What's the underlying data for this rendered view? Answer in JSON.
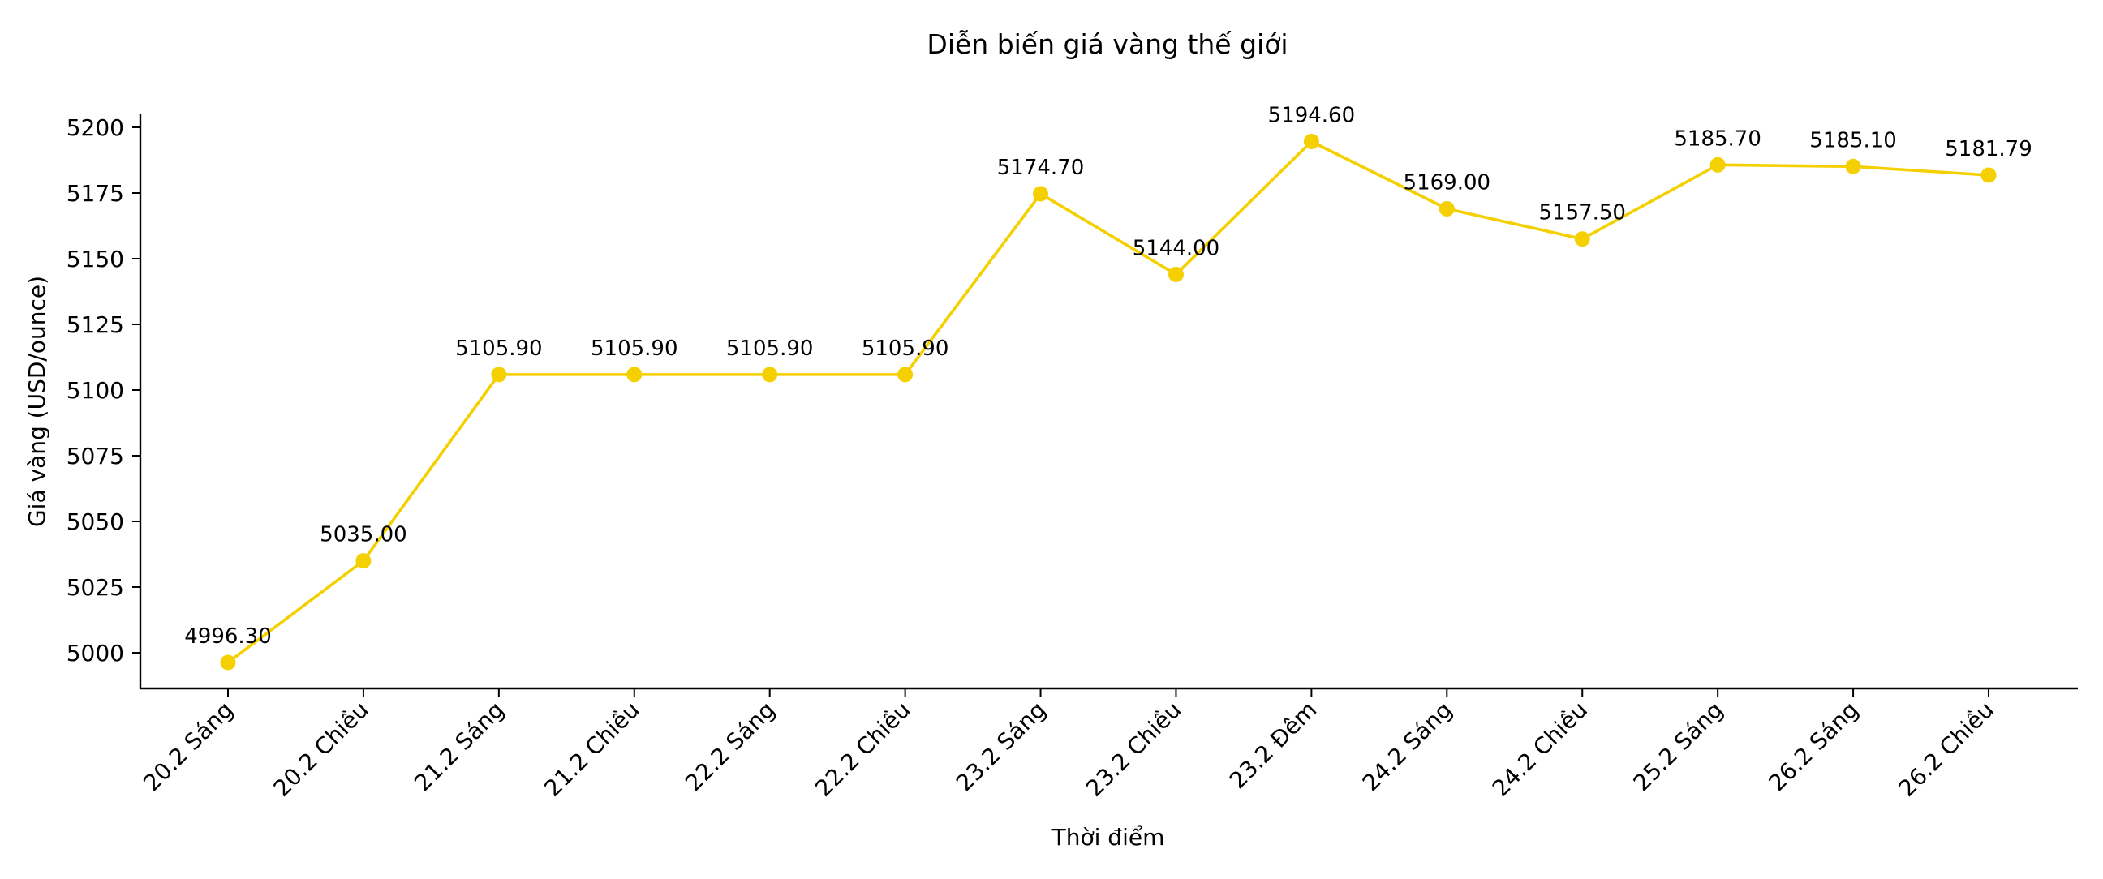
{
  "chart_data": {
    "type": "line",
    "title": "Diễn biến giá vàng thế giới",
    "xlabel": "Thời điểm",
    "ylabel": "Giá vàng (USD/ounce)",
    "categories": [
      "20.2 Sáng",
      "20.2 Chiều",
      "21.2 Sáng",
      "21.2 Chiều",
      "22.2 Sáng",
      "22.2 Chiều",
      "23.2 Sáng",
      "23.2 Chiều",
      "23.2 Đêm",
      "24.2 Sáng",
      "24.2 Chiều",
      "25.2 Sáng",
      "26.2 Sáng",
      "26.2 Chiều"
    ],
    "series": [
      {
        "name": "Giá vàng",
        "color": "#F5D000",
        "marker": "circle",
        "values": [
          4996.3,
          5035.0,
          5105.9,
          5105.9,
          5105.9,
          5105.9,
          5174.7,
          5144.0,
          5194.6,
          5169.0,
          5157.5,
          5185.7,
          5185.1,
          5181.79
        ],
        "labels": [
          "4996.30",
          "5035.00",
          "5105.90",
          "5105.90",
          "5105.90",
          "5105.90",
          "5174.70",
          "5144.00",
          "5194.60",
          "5169.00",
          "5157.50",
          "5185.70",
          "5185.10",
          "5181.79"
        ]
      }
    ],
    "yticks": [
      5000,
      5025,
      5050,
      5075,
      5100,
      5125,
      5150,
      5175,
      5200
    ],
    "ylim": [
      4986,
      5206
    ],
    "grid": false,
    "legend": null,
    "spines": [
      "left",
      "bottom"
    ],
    "xtick_rotation": 45
  }
}
